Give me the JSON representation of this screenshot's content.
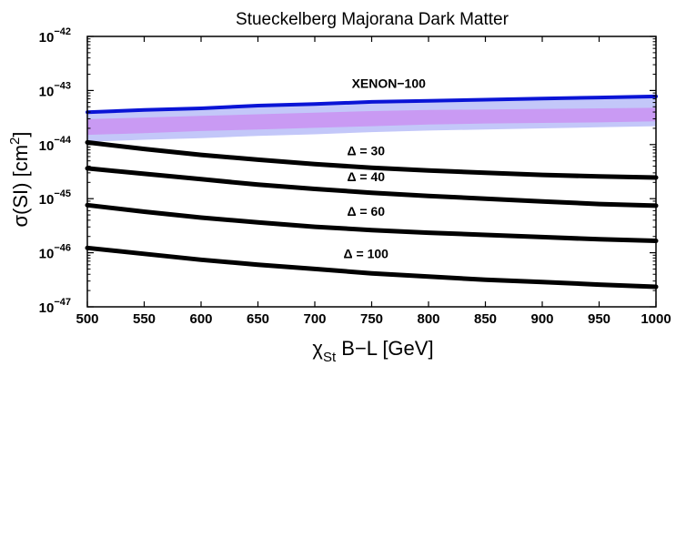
{
  "chart_data": {
    "type": "line",
    "title": "Stueckelberg Majorana Dark Matter",
    "xlabel": {
      "main": "χ",
      "sub": "St",
      "rest": " B−L    [GeV]"
    },
    "ylabel": {
      "main": "σ(SI)   [cm",
      "sup": "2",
      "end": "]"
    },
    "xlim": [
      500,
      1000
    ],
    "ylim_log10": [
      -47,
      -42
    ],
    "yscale": "log",
    "xticks": [
      500,
      550,
      600,
      650,
      700,
      750,
      800,
      850,
      900,
      950,
      1000
    ],
    "xtick_labels": [
      "500",
      "550",
      "600",
      "650",
      "700",
      "750",
      "800",
      "850",
      "900",
      "950",
      "1000"
    ],
    "yticks": [
      -47,
      -46,
      -45,
      -44,
      -43,
      -42
    ],
    "ytick_labels": [
      {
        "base": "10",
        "exp": "−47"
      },
      {
        "base": "10",
        "exp": "−46"
      },
      {
        "base": "10",
        "exp": "−45"
      },
      {
        "base": "10",
        "exp": "−44"
      },
      {
        "base": "10",
        "exp": "−43"
      },
      {
        "base": "10",
        "exp": "−42"
      }
    ],
    "grid": false,
    "series": [
      {
        "name": "XENON−100",
        "color": "#0a14d6",
        "x": [
          500,
          550,
          600,
          650,
          700,
          750,
          800,
          850,
          900,
          950,
          1000
        ],
        "log10_sigma": [
          -43.4,
          -43.36,
          -43.33,
          -43.28,
          -43.25,
          -43.21,
          -43.19,
          -43.17,
          -43.15,
          -43.13,
          -43.11
        ]
      },
      {
        "name": "Δ = 30",
        "color": "#000000",
        "x": [
          500,
          550,
          600,
          650,
          700,
          750,
          800,
          850,
          900,
          950,
          1000
        ],
        "log10_sigma": [
          -43.96,
          -44.08,
          -44.19,
          -44.28,
          -44.36,
          -44.43,
          -44.48,
          -44.52,
          -44.56,
          -44.59,
          -44.61
        ]
      },
      {
        "name": "Δ = 40",
        "color": "#000000",
        "x": [
          500,
          550,
          600,
          650,
          700,
          750,
          800,
          850,
          900,
          950,
          1000
        ],
        "log10_sigma": [
          -44.44,
          -44.54,
          -44.64,
          -44.74,
          -44.82,
          -44.89,
          -44.95,
          -45.0,
          -45.05,
          -45.1,
          -45.13
        ]
      },
      {
        "name": "Δ = 60",
        "color": "#000000",
        "x": [
          500,
          550,
          600,
          650,
          700,
          750,
          800,
          850,
          900,
          950,
          1000
        ],
        "log10_sigma": [
          -45.12,
          -45.24,
          -45.35,
          -45.44,
          -45.52,
          -45.58,
          -45.63,
          -45.67,
          -45.71,
          -45.75,
          -45.78
        ]
      },
      {
        "name": "Δ = 100",
        "color": "#000000",
        "x": [
          500,
          550,
          600,
          650,
          700,
          750,
          800,
          850,
          900,
          950,
          1000
        ],
        "log10_sigma": [
          -45.91,
          -46.02,
          -46.13,
          -46.22,
          -46.3,
          -46.38,
          -46.44,
          -46.5,
          -46.54,
          -46.59,
          -46.63
        ]
      }
    ],
    "bands": [
      {
        "color": "#c3c7f9",
        "x": [
          500,
          550,
          600,
          650,
          700,
          750,
          800,
          850,
          900,
          950,
          1000
        ],
        "log10_upper": [
          -43.4,
          -43.37,
          -43.34,
          -43.3,
          -43.27,
          -43.24,
          -43.22,
          -43.2,
          -43.18,
          -43.16,
          -43.13
        ],
        "log10_lower": [
          -43.95,
          -43.91,
          -43.88,
          -43.84,
          -43.81,
          -43.77,
          -43.74,
          -43.72,
          -43.7,
          -43.68,
          -43.66
        ]
      },
      {
        "color": "#c99af3",
        "x": [
          500,
          550,
          600,
          650,
          700,
          750,
          800,
          850,
          900,
          950,
          1000
        ],
        "log10_upper": [
          -43.53,
          -43.5,
          -43.47,
          -43.44,
          -43.41,
          -43.38,
          -43.36,
          -43.35,
          -43.34,
          -43.33,
          -43.32
        ],
        "log10_lower": [
          -43.82,
          -43.79,
          -43.75,
          -43.72,
          -43.69,
          -43.66,
          -43.63,
          -43.61,
          -43.6,
          -43.59,
          -43.57
        ]
      }
    ],
    "annotations": [
      {
        "text": "XENON−100",
        "x": 765,
        "log10_sigma": -42.95
      },
      {
        "text": "Δ = 30",
        "x": 745,
        "log10_sigma": -44.2
      },
      {
        "text": "Δ = 40",
        "x": 745,
        "log10_sigma": -44.68
      },
      {
        "text": "Δ = 60",
        "x": 745,
        "log10_sigma": -45.32
      },
      {
        "text": "Δ = 100",
        "x": 745,
        "log10_sigma": -46.1
      }
    ]
  }
}
